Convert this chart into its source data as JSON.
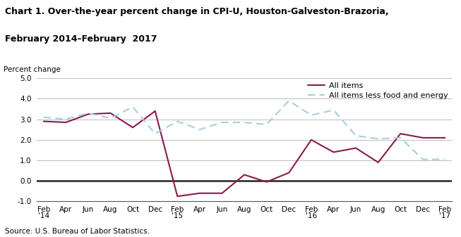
{
  "title_line1": "Chart 1. Over-the-year percent change in CPI-U, Houston-Galveston-Brazoria,",
  "title_line2": "February 2014–February  2017",
  "ylabel": "Percent change",
  "source": "Source: U.S. Bureau of Labor Statistics.",
  "x_labels": [
    "Feb\n'14",
    "Apr",
    "Jun",
    "Aug",
    "Oct",
    "Dec",
    "Feb\n'15",
    "Apr",
    "Jun",
    "Aug",
    "Oct",
    "Dec",
    "Feb\n'16",
    "Apr",
    "Jun",
    "Aug",
    "Oct",
    "Dec",
    "Feb\n'17"
  ],
  "all_items_y": [
    2.9,
    2.85,
    3.25,
    3.3,
    2.6,
    3.4,
    -0.75,
    -0.6,
    -0.6,
    0.3,
    -0.05,
    0.4,
    2.0,
    1.4,
    1.6,
    0.9,
    2.3,
    2.1,
    2.1
  ],
  "all_less_y": [
    3.1,
    3.0,
    3.3,
    3.05,
    3.6,
    2.3,
    2.9,
    2.5,
    2.85,
    2.85,
    2.75,
    3.9,
    3.2,
    3.45,
    2.2,
    2.05,
    2.1,
    1.05,
    1.05
  ],
  "all_items_color": "#8B1A4A",
  "all_items_less_color": "#A8CEDE",
  "ylim": [
    -1.0,
    5.0
  ],
  "yticks": [
    -1.0,
    0.0,
    1.0,
    2.0,
    3.0,
    4.0,
    5.0
  ],
  "chart_bg": "#FFFFFF",
  "grid_color": "#BBBBBB",
  "zero_line_color": "#222222",
  "title_fontsize": 9,
  "ylabel_fontsize": 7.5,
  "tick_fontsize": 7.5,
  "source_fontsize": 7.5,
  "legend_fontsize": 8
}
